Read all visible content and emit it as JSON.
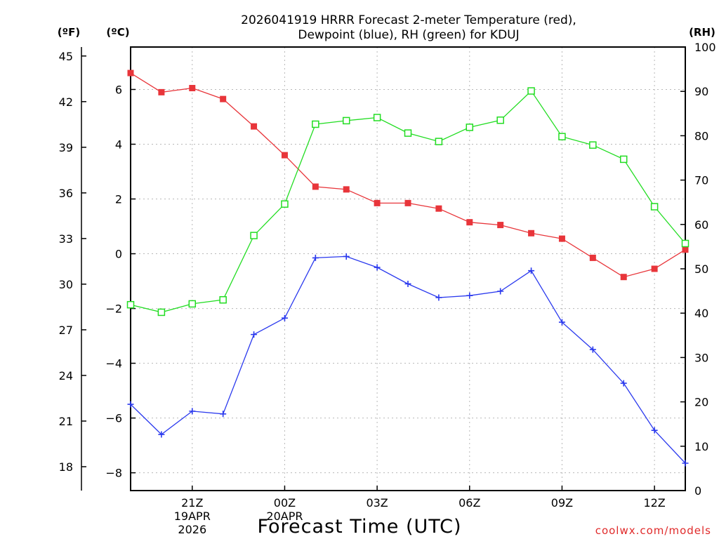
{
  "chart_data": {
    "type": "line",
    "title_line1": "2026041919 HRRR Forecast 2-meter Temperature (red),",
    "title_line2": "Dewpoint (blue), RH (green) for KDUJ",
    "xlabel": "Forecast Time (UTC)",
    "credit": "coolwx.com/models",
    "units": {
      "fahrenheit": "(ºF)",
      "celsius": "(ºC)",
      "rh": "(RH)"
    },
    "x_hours": [
      19,
      20,
      21,
      22,
      23,
      24,
      25,
      26,
      27,
      28,
      29,
      30,
      31,
      32,
      33,
      34,
      35,
      36,
      37
    ],
    "xlim": [
      19,
      37
    ],
    "x_ticks": [
      {
        "x": 21,
        "lines": [
          "21Z",
          "19APR",
          "2026"
        ]
      },
      {
        "x": 24,
        "lines": [
          "00Z",
          "20APR"
        ]
      },
      {
        "x": 27,
        "lines": [
          "03Z"
        ]
      },
      {
        "x": 30,
        "lines": [
          "06Z"
        ]
      },
      {
        "x": 33,
        "lines": [
          "09Z"
        ]
      },
      {
        "x": 36,
        "lines": [
          "12Z"
        ]
      }
    ],
    "y_celsius": {
      "range": [
        -8.65,
        7.55
      ],
      "ticks": [
        6,
        4,
        2,
        0,
        -2,
        -4,
        -6,
        -8
      ],
      "tick_labels": [
        "6",
        "4",
        "2",
        "0",
        "−2",
        "−4",
        "−6",
        "−8"
      ]
    },
    "y_fahrenheit": {
      "ticks": [
        45,
        42,
        39,
        36,
        33,
        30,
        27,
        24,
        21,
        18
      ],
      "tick_labels": [
        "45",
        "42",
        "39",
        "36",
        "33",
        "30",
        "27",
        "24",
        "21",
        "18"
      ]
    },
    "y_rh": {
      "range": [
        0,
        100
      ],
      "ticks": [
        100,
        90,
        80,
        70,
        60,
        50,
        40,
        30,
        20,
        10,
        0
      ],
      "tick_labels": [
        "100",
        "90",
        "80",
        "70",
        "60",
        "50",
        "40",
        "30",
        "20",
        "10",
        "0"
      ]
    },
    "series": [
      {
        "name": "Temperature",
        "axis": "celsius",
        "color": "#e8353a",
        "marker": "filled-square",
        "values": [
          6.6,
          5.9,
          6.05,
          5.65,
          4.65,
          3.6,
          2.45,
          2.35,
          1.85,
          1.85,
          1.65,
          1.15,
          1.05,
          0.75,
          0.55,
          -0.15,
          -0.85,
          -0.55,
          0.15
        ]
      },
      {
        "name": "Dewpoint",
        "axis": "celsius",
        "color": "#2a39ee",
        "marker": "plus",
        "values": [
          -5.5,
          -6.6,
          -5.75,
          -5.85,
          -2.95,
          -2.35,
          -0.15,
          -0.1,
          -0.5,
          -1.1,
          -1.6,
          -1.53,
          -1.37,
          -0.62,
          -2.5,
          -3.5,
          -4.73,
          -6.45,
          -7.65
        ]
      },
      {
        "name": "RH",
        "axis": "rh",
        "color": "#22dd22",
        "marker": "open-square",
        "values": [
          41.9,
          40.2,
          42.1,
          43.0,
          57.5,
          64.6,
          82.6,
          83.4,
          84.1,
          80.6,
          78.7,
          81.9,
          83.5,
          90.1,
          79.8,
          77.9,
          74.7,
          64.0,
          55.7
        ]
      }
    ]
  }
}
